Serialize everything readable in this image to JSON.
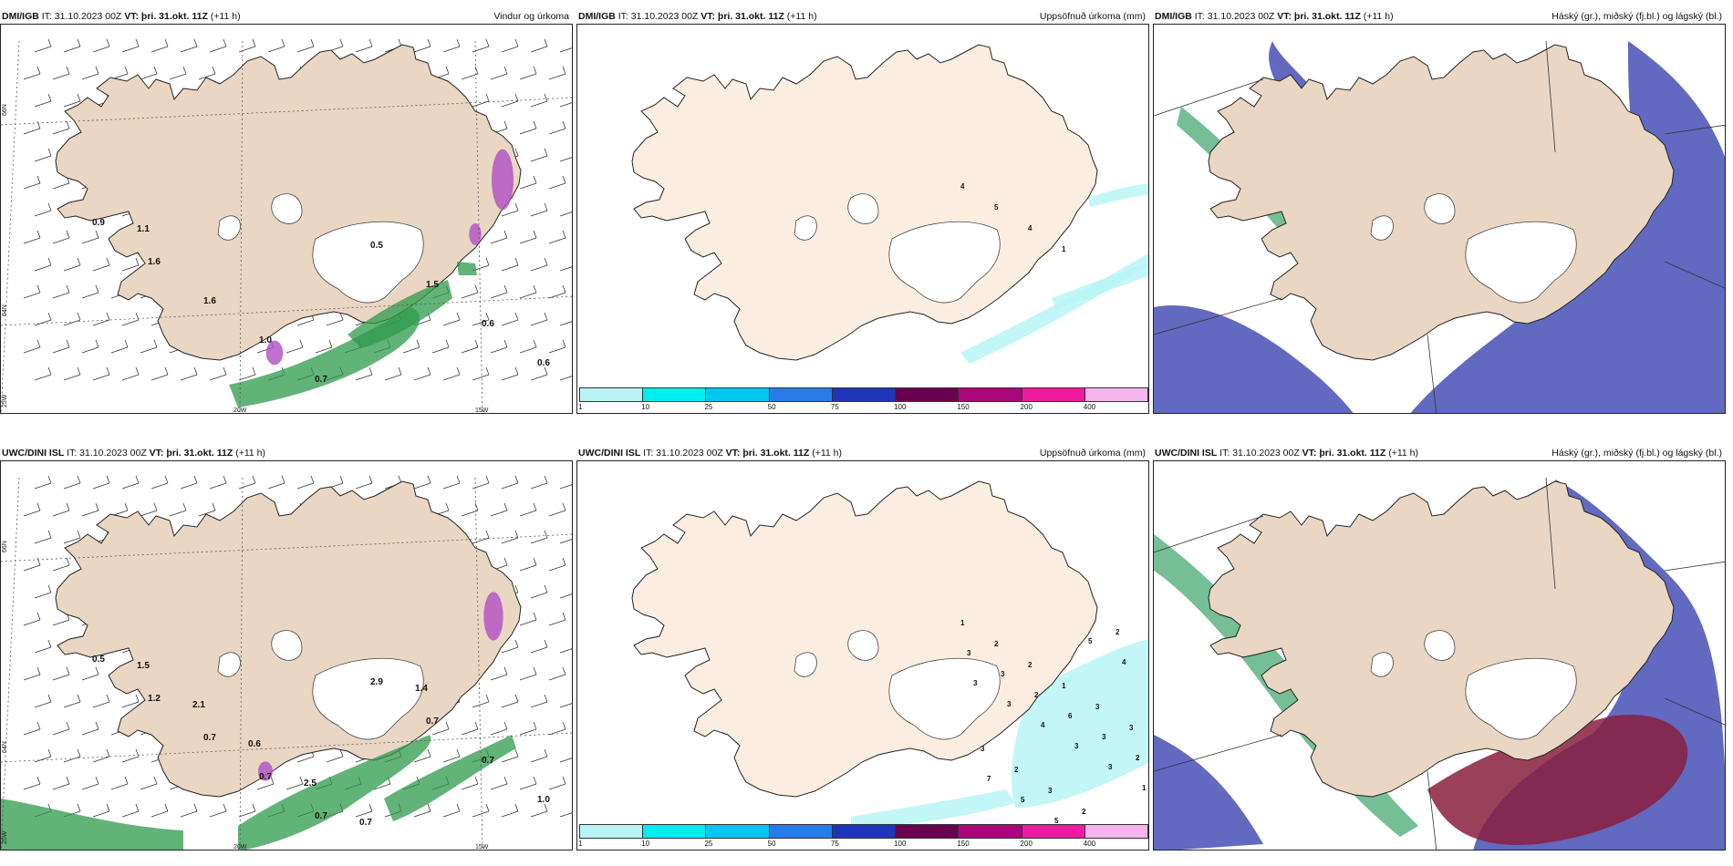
{
  "panels": [
    {
      "model": "DMI/IGB",
      "it": "IT: 31.10.2023 00Z",
      "vt_label": "VT:",
      "vt": "þri. 31.okt. 11Z",
      "lead": "(+11 h)",
      "title": "Vindur og úrkoma",
      "kind": "wind",
      "numbers": [
        "0.9",
        "1.6",
        "1.6",
        "1.0",
        "0.7",
        "0.5",
        "1.5",
        "0.6",
        "0.6",
        "1.1"
      ]
    },
    {
      "model": "DMI/IGB",
      "it": "IT: 31.10.2023 00Z",
      "vt_label": "VT:",
      "vt": "þri. 31.okt. 11Z",
      "lead": "(+11 h)",
      "title": "Uppsöfnuð úrkoma (mm)",
      "kind": "precip",
      "numbers": [
        "4",
        "5",
        "4",
        "1"
      ]
    },
    {
      "model": "DMI/IGB",
      "it": "IT: 31.10.2023 00Z",
      "vt_label": "VT:",
      "vt": "þri. 31.okt. 11Z",
      "lead": "(+11 h)",
      "title": "Háský (gr.), miðský (fj.bl.) og lágský (bl.)",
      "kind": "cloud"
    },
    {
      "model": "UWC/DINI ISL",
      "it": "IT: 31.10.2023 00Z",
      "vt_label": "VT:",
      "vt": "þri. 31.okt. 11Z",
      "lead": "(+11 h)",
      "title": "",
      "kind": "wind",
      "numbers": [
        "0.5",
        "1.2",
        "0.7",
        "0.7",
        "0.7",
        "2.9",
        "0.7",
        "0.7",
        "1.0",
        "1.5",
        "2.1",
        "0.6",
        "2.5",
        "0.7",
        "1.4"
      ]
    },
    {
      "model": "UWC/DINI ISL",
      "it": "IT: 31.10.2023 00Z",
      "vt_label": "VT:",
      "vt": "þri. 31.okt. 11Z",
      "lead": "(+11 h)",
      "title": "Uppsöfnuð úrkoma (mm)",
      "kind": "precip",
      "numbers": [
        "1",
        "2",
        "2",
        "1",
        "3",
        "3",
        "3",
        "2",
        "3",
        "2",
        "2",
        "3",
        "3",
        "2",
        "6",
        "3",
        "2",
        "7",
        "5",
        "5",
        "5",
        "4",
        "3",
        "3",
        "4",
        "3",
        "3",
        "1"
      ]
    },
    {
      "model": "UWC/DINI ISL",
      "it": "IT: 31.10.2023 00Z",
      "vt_label": "VT:",
      "vt": "þri. 31.okt. 11Z",
      "lead": "(+11 h)",
      "title": "Háský (gr.), miðský (fj.bl.) og lágský (bl.)",
      "kind": "cloud2"
    }
  ],
  "axis_labels": {
    "lat66": "66N",
    "lat64": "64N",
    "lon25": "25W",
    "lon20": "20W",
    "lon15": "15W"
  },
  "precip_legend": {
    "ticks": [
      "1",
      "10",
      "25",
      "50",
      "75",
      "100",
      "150",
      "200",
      "400"
    ],
    "colors": [
      "#b8f4f4",
      "#00eeee",
      "#00c8f0",
      "#2b7be6",
      "#1f35b8",
      "#6a0050",
      "#a8087a",
      "#ee1aa0",
      "#f4b4ec"
    ]
  },
  "colors": {
    "land": "#e9d7c3",
    "land_precip": "#fbeee0",
    "wind_precip": "#2e9a4a",
    "snow": "#b04fc4",
    "high_cloud": "#3aa26a",
    "mid_cloud": "#3944b0",
    "low_cloud": "#8a1e3e"
  }
}
